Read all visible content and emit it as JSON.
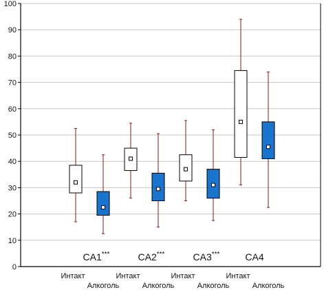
{
  "chart_data": {
    "type": "box",
    "title": "",
    "xlabel": "",
    "ylabel": "",
    "ylim": [
      0,
      100
    ],
    "yticks": [
      0,
      10,
      20,
      30,
      40,
      50,
      60,
      70,
      80,
      90,
      100
    ],
    "grid": true,
    "colors": {
      "intact": "#ffffff",
      "alcohol": "#1874cd",
      "whisker": "#8b1a1a",
      "grid": "#c8c8c8",
      "axis": "#000000"
    },
    "x_labels": [
      "Интакт",
      "Алкоголь",
      "Интакт",
      "Алкоголь",
      "Интакт",
      "Алкоголь",
      "Интакт",
      "Алкоголь"
    ],
    "groups": [
      {
        "label": "CA1",
        "significance": "***"
      },
      {
        "label": "CA2",
        "significance": "***"
      },
      {
        "label": "CA3",
        "significance": "***"
      },
      {
        "label": "CA4",
        "significance": ""
      }
    ],
    "boxes": [
      {
        "group": "CA1",
        "category": "Интакт",
        "min": 17,
        "q1": 28,
        "mean": 32,
        "q3": 38.5,
        "max": 52.5
      },
      {
        "group": "CA1",
        "category": "Алкоголь",
        "min": 12.5,
        "q1": 19.5,
        "mean": 22.5,
        "q3": 28.5,
        "max": 42.5
      },
      {
        "group": "CA2",
        "category": "Интакт",
        "min": 26,
        "q1": 36.5,
        "mean": 41,
        "q3": 45,
        "max": 54.5
      },
      {
        "group": "CA2",
        "category": "Алкоголь",
        "min": 15,
        "q1": 25,
        "mean": 29.5,
        "q3": 35.5,
        "max": 50.5
      },
      {
        "group": "CA3",
        "category": "Интакт",
        "min": 25,
        "q1": 32.5,
        "mean": 37,
        "q3": 42.5,
        "max": 55.5
      },
      {
        "group": "CA3",
        "category": "Алкоголь",
        "min": 17.5,
        "q1": 26,
        "mean": 31,
        "q3": 37,
        "max": 52
      },
      {
        "group": "CA4",
        "category": "Интакт",
        "min": 31,
        "q1": 41.5,
        "mean": 55,
        "q3": 74.5,
        "max": 94
      },
      {
        "group": "CA4",
        "category": "Алкоголь",
        "min": 22.5,
        "q1": 41,
        "mean": 45.5,
        "q3": 55,
        "max": 74
      }
    ]
  }
}
